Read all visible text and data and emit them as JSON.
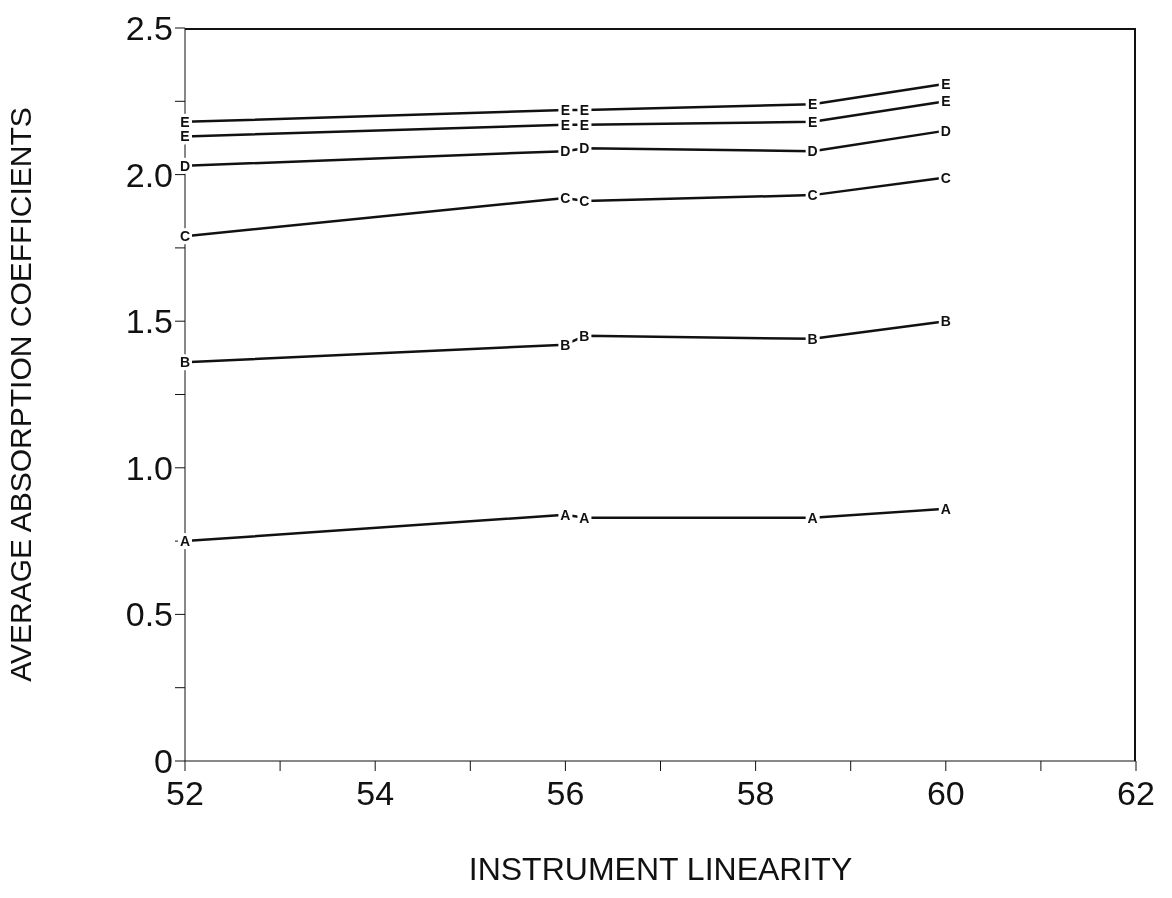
{
  "chart_data": {
    "type": "line",
    "xlabel": "INSTRUMENT LINEARITY",
    "ylabel": "AVERAGE ABSORPTION COEFFICIENTS",
    "x": [
      52,
      56,
      56.2,
      58.6,
      60
    ],
    "series": [
      {
        "name": "A",
        "color": "#111111",
        "values": [
          0.75,
          0.84,
          0.83,
          0.83,
          0.86
        ]
      },
      {
        "name": "B",
        "color": "#111111",
        "values": [
          1.36,
          1.42,
          1.45,
          1.44,
          1.5
        ]
      },
      {
        "name": "C",
        "color": "#111111",
        "values": [
          1.79,
          1.92,
          1.91,
          1.93,
          1.99
        ]
      },
      {
        "name": "D",
        "color": "#111111",
        "values": [
          2.03,
          2.08,
          2.09,
          2.08,
          2.15
        ]
      },
      {
        "name": "E",
        "color": "#111111",
        "values": [
          2.13,
          2.17,
          2.17,
          2.18,
          2.25
        ]
      },
      {
        "name": "E",
        "color": "#111111",
        "values": [
          2.18,
          2.22,
          2.22,
          2.24,
          2.31
        ]
      }
    ],
    "xlim": [
      52,
      62
    ],
    "xticks": [
      52,
      {
        "value": 53,
        "label": null
      },
      54,
      {
        "value": 55,
        "label": null
      },
      56,
      {
        "value": 57,
        "label": null
      },
      58,
      {
        "value": 59,
        "label": null
      },
      60,
      {
        "value": 61,
        "label": null
      },
      62
    ],
    "ylim": [
      0,
      2.5
    ],
    "yticks": [
      "0",
      {
        "value": 0.25,
        "label": null
      },
      {
        "value": 0.5,
        "label": "0.5"
      },
      {
        "value": 0.75,
        "label": null
      },
      {
        "value": 1,
        "label": "1.0"
      },
      {
        "value": 1.25,
        "label": null
      },
      {
        "value": 1.5,
        "label": "1.5"
      },
      {
        "value": 1.75,
        "label": null
      },
      {
        "value": 2,
        "label": "2.0"
      },
      {
        "value": 2.25,
        "label": null
      },
      {
        "value": 2.5,
        "label": "2.5"
      }
    ],
    "grid": false,
    "legend": false,
    "marker": "square"
  }
}
